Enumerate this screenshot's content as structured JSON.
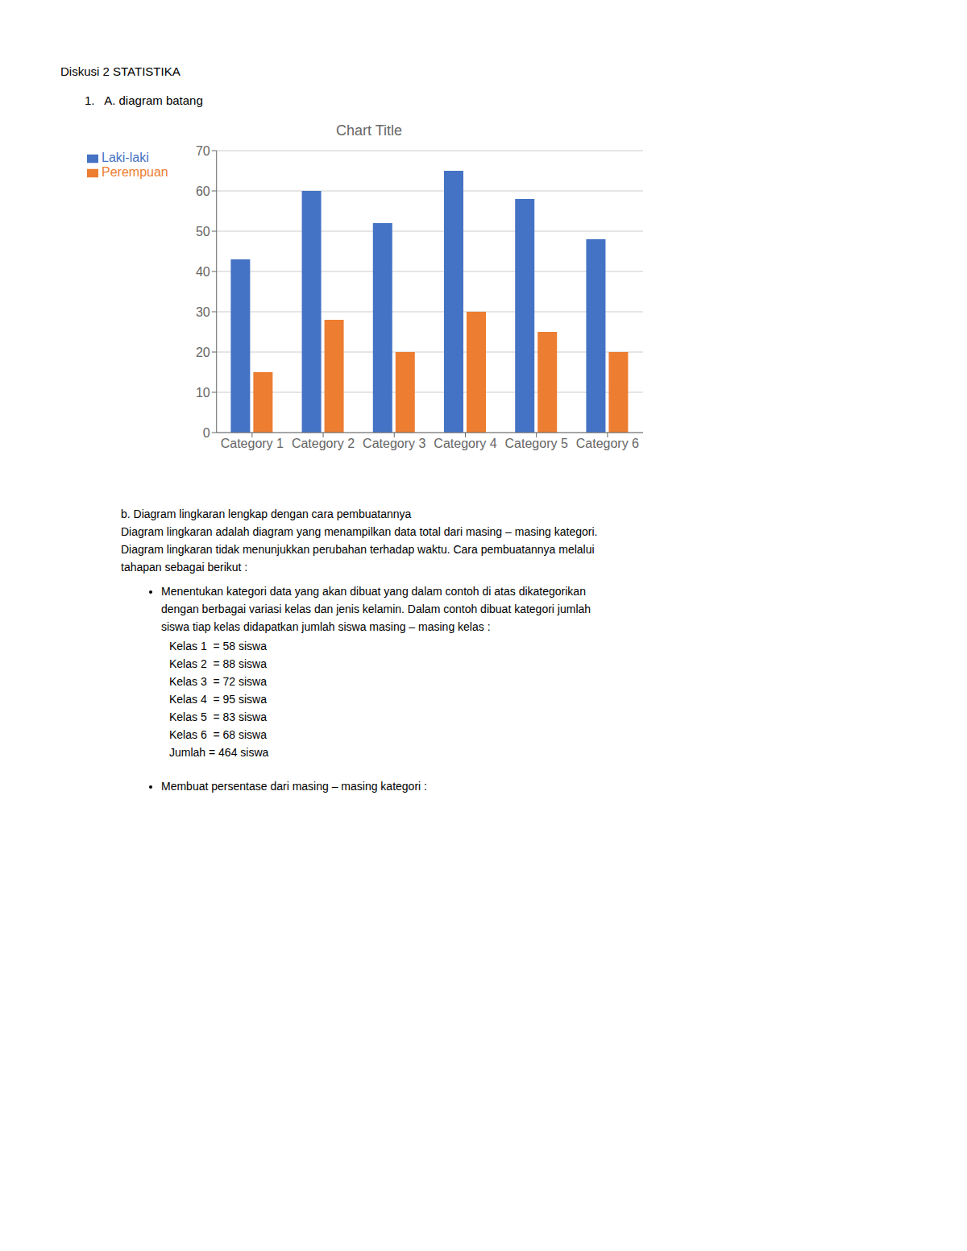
{
  "chart_data": {
    "type": "bar",
    "title": "Chart Title",
    "categories": [
      "Category 1",
      "Category 2",
      "Category 3",
      "Category 4",
      "Category 5",
      "Category 6"
    ],
    "series": [
      {
        "name": "Laki-laki",
        "color": "#4472c4",
        "values": [
          43,
          60,
          52,
          65,
          58,
          48
        ]
      },
      {
        "name": "Perempuan",
        "color": "#ed7d31",
        "values": [
          15,
          28,
          20,
          30,
          25,
          20
        ]
      }
    ],
    "ylim": [
      0,
      70
    ],
    "yticks": [
      0,
      10,
      20,
      30,
      40,
      50,
      60,
      70
    ],
    "grid": true,
    "legend": "top",
    "annotations": [
      "Diskusi 2 STATISTIKA",
      "1.   A. diagram batang",
      "b. Diagram lingkaran lengkap dengan cara pembuatannya",
      "Diagram lingkaran adalah diagram yang menampilkan data total dari masing – masing kategori.",
      "Diagram lingkaran tidak menunjukkan perubahan terhadap waktu. Cara pembuatannya melalui",
      "tahapan sebagai berikut :",
      "Menentukan kategori data yang akan dibuat yang dalam contoh di atas dikategorikan",
      "dengan berbagai variasi kelas dan jenis kelamin. Dalam contoh dibuat kategori jumlah",
      "siswa tiap kelas didapatkan jumlah siswa masing – masing kelas :",
      "Kelas 1  = 58 siswa",
      "Kelas 2  = 88 siswa",
      "Kelas 3  = 72 siswa",
      "Kelas 4  = 95 siswa",
      "Kelas 5  = 83 siswa",
      "Kelas 6  = 68 siswa",
      "Jumlah = 464 siswa",
      "Membuat persentase dari masing – masing kategori :"
    ]
  }
}
